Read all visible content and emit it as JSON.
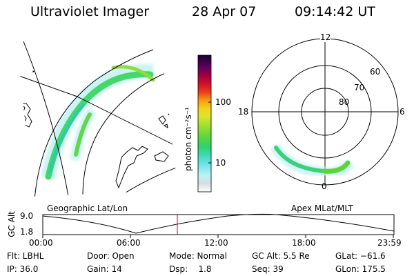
{
  "header": {
    "title": "Ultraviolet Imager",
    "date": "28 Apr 07",
    "time": "09:14:42 UT"
  },
  "colorbar": {
    "label": "photon cm⁻²s⁻¹",
    "ticks": [
      "100",
      "10"
    ]
  },
  "polar": {
    "mlt_labels": {
      "top": "12",
      "left": "18",
      "right": "6",
      "bottom": "0"
    },
    "lat_labels": [
      "60",
      "70",
      "80"
    ]
  },
  "timeline": {
    "left_label": "Geographic Lat/Lon",
    "right_label": "Apex MLat/MLT",
    "y_axis_label": "GC Alt",
    "y_ticks": [
      "9.0",
      "1.8"
    ],
    "x_ticks": [
      "00:00",
      "06:00",
      "12:00",
      "18:00",
      "23:59"
    ],
    "cursor_time": "09:14:42",
    "cursor_color": "#d00000"
  },
  "info": {
    "row1": {
      "filter": "Flt: LBHL",
      "door": "Door: Open",
      "mode": "Mode: Normal",
      "gc_alt": "GC Alt: 5.5 Re",
      "glat": "GLat: −61.6"
    },
    "row2": {
      "ip": "IP: 36.0",
      "gain": "Gain: 14",
      "dsp": "Dsp:    1.8",
      "seq": "Seq: 39",
      "glon": "GLon: 175.5"
    }
  }
}
